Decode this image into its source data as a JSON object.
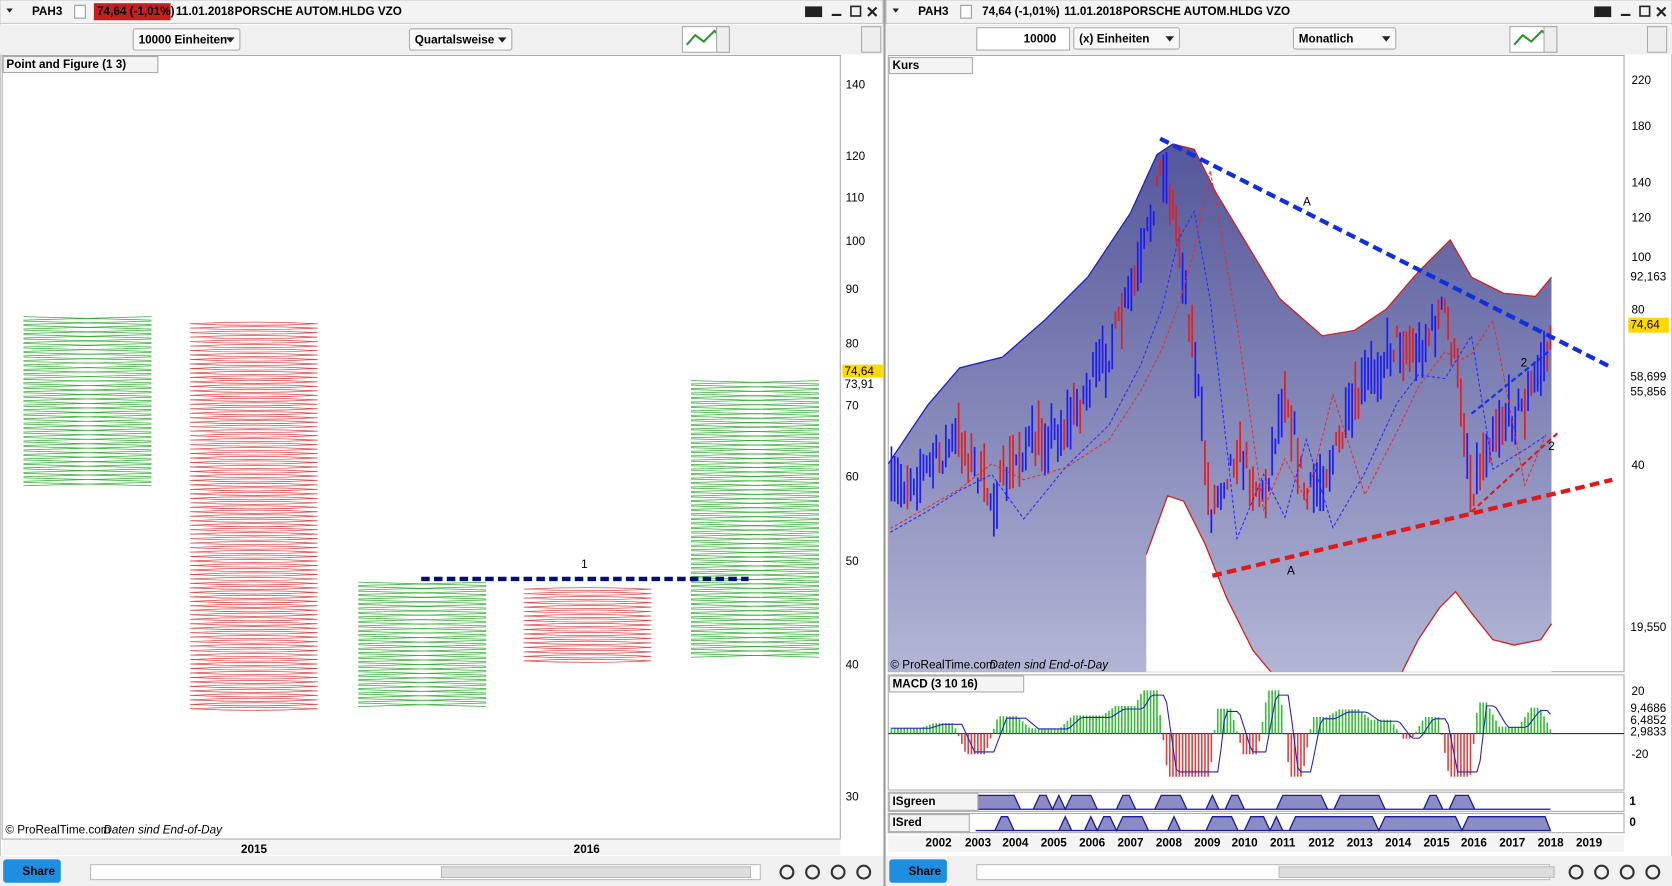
{
  "left": {
    "symbol": "PAH3",
    "quote": "74,64 (-1,01%)",
    "date": "11.01.2018",
    "name": "PORSCHE AUTOM.HLDG VZO",
    "units": "10000 Einheiten",
    "period": "Quartalsweise",
    "panel_title": "Point and Figure (1 3)",
    "price_axis": [
      "140",
      "120",
      "110",
      "100",
      "90",
      "80",
      "70",
      "60",
      "50",
      "40",
      "30"
    ],
    "flags": [
      "74,64",
      "73,91"
    ],
    "annotation": "1",
    "copyright": "© ProRealTime.com",
    "eod": "Daten sind End-of-Day",
    "years": [
      "2015",
      "2016"
    ],
    "share": "Share"
  },
  "right": {
    "symbol": "PAH3",
    "quote": "74,64 (-1,01%)",
    "date": "11.01.2018",
    "name": "PORSCHE AUTOM.HLDG VZO",
    "units_value": "10000",
    "units_label": "(x) Einheiten",
    "period": "Monatlich",
    "panel_title": "Kurs",
    "price_axis": [
      "220",
      "180",
      "140",
      "120",
      "100",
      "80",
      "40"
    ],
    "flags": [
      "92,163",
      "74,64",
      "58,699",
      "55,856",
      "19,550"
    ],
    "annotations": [
      "A",
      "A",
      "2",
      "2"
    ],
    "copyright": "© ProRealTime.com",
    "eod": "Daten sind End-of-Day",
    "macd": {
      "title": "MACD (3 10 16)",
      "axis": [
        "20",
        "-20"
      ],
      "flags": [
        "9,4686",
        "6,4852",
        "2,9833"
      ]
    },
    "isgreen": {
      "title": "ISgreen",
      "value": "1"
    },
    "isred": {
      "title": "ISred",
      "value": "0"
    },
    "years": [
      "2002",
      "2003",
      "2004",
      "2005",
      "2006",
      "2007",
      "2008",
      "2009",
      "2010",
      "2011",
      "2012",
      "2013",
      "2014",
      "2015",
      "2016",
      "2017",
      "2018",
      "2019"
    ],
    "share": "Share"
  }
}
